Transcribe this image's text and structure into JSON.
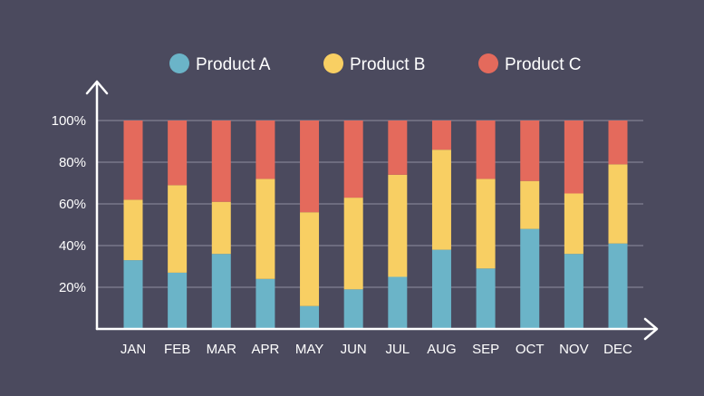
{
  "chart_data": {
    "type": "bar",
    "stacked": true,
    "normalized": true,
    "categories": [
      "JAN",
      "FEB",
      "MAR",
      "APR",
      "MAY",
      "JUN",
      "JUL",
      "AUG",
      "SEP",
      "OCT",
      "NOV",
      "DEC"
    ],
    "series": [
      {
        "name": "Product A",
        "color": "#6bb4c8",
        "values": [
          33,
          27,
          36,
          24,
          11,
          19,
          25,
          38,
          29,
          48,
          36,
          41
        ]
      },
      {
        "name": "Product B",
        "color": "#f8cf63",
        "values": [
          29,
          42,
          25,
          48,
          45,
          44,
          49,
          48,
          43,
          23,
          29,
          38
        ]
      },
      {
        "name": "Product C",
        "color": "#e46a5c",
        "values": [
          38,
          31,
          39,
          28,
          44,
          37,
          26,
          14,
          28,
          29,
          35,
          21
        ]
      }
    ],
    "y_ticks": [
      "20%",
      "40%",
      "60%",
      "80%",
      "100%"
    ],
    "ylim": [
      0,
      100
    ],
    "grid": true,
    "legend_position": "top"
  }
}
